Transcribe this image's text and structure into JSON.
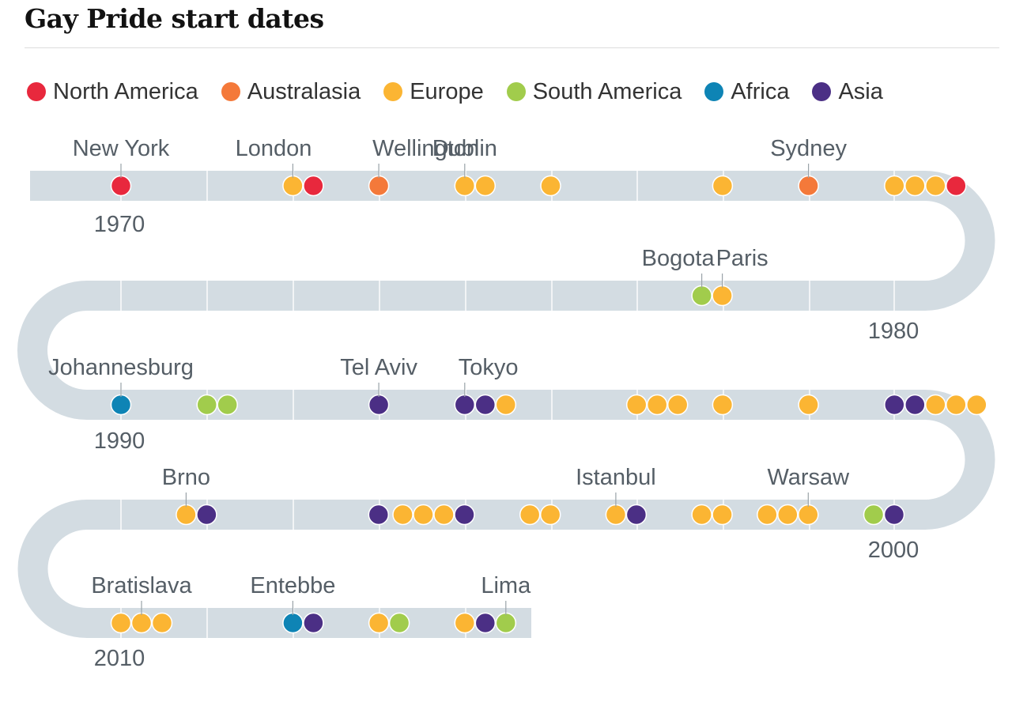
{
  "title": "Gay Pride start dates",
  "chart_data": {
    "type": "timeline",
    "title": "Gay Pride start dates",
    "year_range": [
      1968,
      2014
    ],
    "year_labels": [
      1970,
      1980,
      1990,
      2000,
      2010
    ],
    "regions": [
      {
        "key": "north_america",
        "name": "North America",
        "color": "#e8283d"
      },
      {
        "key": "australasia",
        "name": "Australasia",
        "color": "#f4793a"
      },
      {
        "key": "europe",
        "name": "Europe",
        "color": "#fbb533"
      },
      {
        "key": "south_america",
        "name": "South America",
        "color": "#a1cc4c"
      },
      {
        "key": "africa",
        "name": "Africa",
        "color": "#0e84b5"
      },
      {
        "key": "asia",
        "name": "Asia",
        "color": "#4b2f85"
      }
    ],
    "events": [
      {
        "year": 1970,
        "region": "north_america",
        "label": "New York",
        "sub": 0
      },
      {
        "year": 1972,
        "region": "europe",
        "label": "London",
        "sub": 0
      },
      {
        "year": 1972,
        "region": "north_america",
        "sub": 1
      },
      {
        "year": 1973,
        "region": "australasia",
        "label": "Wellington",
        "sub": 0
      },
      {
        "year": 1974,
        "region": "europe",
        "label": "Dublin",
        "sub": 0
      },
      {
        "year": 1974,
        "region": "europe",
        "sub": 1
      },
      {
        "year": 1975,
        "region": "europe",
        "sub": 0
      },
      {
        "year": 1977,
        "region": "europe",
        "sub": 0
      },
      {
        "year": 1978,
        "region": "australasia",
        "label": "Sydney",
        "sub": 0
      },
      {
        "year": 1979,
        "region": "europe",
        "sub": 0
      },
      {
        "year": 1979,
        "region": "europe",
        "sub": 1
      },
      {
        "year": 1979,
        "region": "europe",
        "sub": 2
      },
      {
        "year": 1979,
        "region": "north_america",
        "sub": 3
      },
      {
        "year": 1982,
        "region": "europe",
        "label": "Paris",
        "sub": 0
      },
      {
        "year": 1982,
        "region": "south_america",
        "label": "Bogota",
        "sub": 1
      },
      {
        "year": 1990,
        "region": "africa",
        "label": "Johannesburg",
        "sub": 0
      },
      {
        "year": 1991,
        "region": "south_america",
        "sub": 0
      },
      {
        "year": 1991,
        "region": "south_america",
        "sub": 1
      },
      {
        "year": 1993,
        "region": "asia",
        "label": "Tel Aviv",
        "sub": 0
      },
      {
        "year": 1994,
        "region": "asia",
        "label": "Tokyo",
        "sub": 0
      },
      {
        "year": 1994,
        "region": "asia",
        "sub": 1
      },
      {
        "year": 1994,
        "region": "europe",
        "sub": 2
      },
      {
        "year": 1996,
        "region": "europe",
        "sub": 0
      },
      {
        "year": 1996,
        "region": "europe",
        "sub": 1
      },
      {
        "year": 1996,
        "region": "europe",
        "sub": 2
      },
      {
        "year": 1997,
        "region": "europe",
        "sub": 0
      },
      {
        "year": 1998,
        "region": "europe",
        "sub": 0
      },
      {
        "year": 1999,
        "region": "asia",
        "sub": 0
      },
      {
        "year": 1999,
        "region": "asia",
        "sub": 1
      },
      {
        "year": 1999,
        "region": "europe",
        "sub": 2
      },
      {
        "year": 1999,
        "region": "europe",
        "sub": 3
      },
      {
        "year": 1999,
        "region": "europe",
        "sub": 4
      },
      {
        "year": 2000,
        "region": "asia",
        "sub": 0
      },
      {
        "year": 2000,
        "region": "south_america",
        "sub": 1
      },
      {
        "year": 2001,
        "region": "europe",
        "label": "Warsaw",
        "sub": 0
      },
      {
        "year": 2001,
        "region": "europe",
        "sub": 1
      },
      {
        "year": 2001,
        "region": "europe",
        "sub": 2
      },
      {
        "year": 2002,
        "region": "europe",
        "sub": 0
      },
      {
        "year": 2002,
        "region": "europe",
        "sub": 1
      },
      {
        "year": 2003,
        "region": "asia",
        "sub": 0
      },
      {
        "year": 2003,
        "region": "europe",
        "label": "Istanbul",
        "sub": 1
      },
      {
        "year": 2004,
        "region": "europe",
        "sub": 0
      },
      {
        "year": 2004,
        "region": "europe",
        "sub": 1
      },
      {
        "year": 2005,
        "region": "asia",
        "sub": 0
      },
      {
        "year": 2005,
        "region": "europe",
        "sub": 1
      },
      {
        "year": 2005,
        "region": "europe",
        "sub": 2
      },
      {
        "year": 2005,
        "region": "europe",
        "sub": 3
      },
      {
        "year": 2006,
        "region": "asia",
        "sub": 0
      },
      {
        "year": 2008,
        "region": "asia",
        "sub": 0
      },
      {
        "year": 2008,
        "region": "europe",
        "label": "Brno",
        "sub": 1
      },
      {
        "year": 2010,
        "region": "europe",
        "sub": 0
      },
      {
        "year": 2010,
        "region": "europe",
        "label": "Bratislava",
        "sub": 1
      },
      {
        "year": 2010,
        "region": "europe",
        "sub": 2
      },
      {
        "year": 2012,
        "region": "africa",
        "label": "Entebbe",
        "sub": 0
      },
      {
        "year": 2012,
        "region": "asia",
        "sub": 1
      },
      {
        "year": 2013,
        "region": "europe",
        "sub": 0
      },
      {
        "year": 2013,
        "region": "south_america",
        "sub": 1
      },
      {
        "year": 2014,
        "region": "europe",
        "sub": 0
      },
      {
        "year": 2014,
        "region": "asia",
        "sub": 1
      },
      {
        "year": 2014,
        "region": "south_america",
        "label": "Lima",
        "sub": 2
      }
    ]
  }
}
